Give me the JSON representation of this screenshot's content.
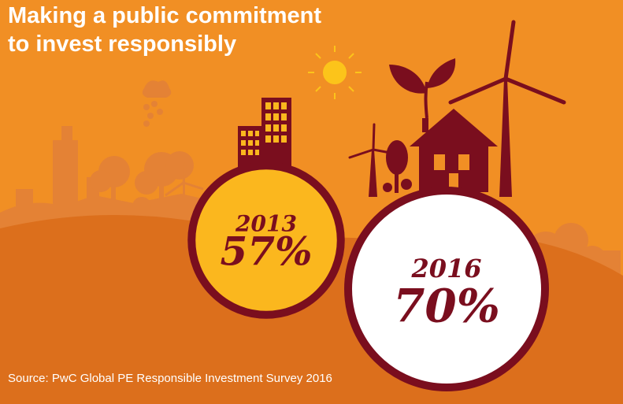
{
  "title_lines": [
    "Making a public commitment",
    "to invest responsibly"
  ],
  "source": "Source: PwC Global PE Responsible Investment Survey 2016",
  "colors": {
    "background": "#f18f24",
    "hills": "#dc6f1c",
    "silhouette": "#e48235",
    "maroon": "#7a0e1e",
    "circle_2013": "#fbb71e",
    "circle_2016": "#ffffff",
    "sun": "#fcc41a"
  },
  "chart_data": {
    "type": "bubble",
    "series": [
      {
        "year": "2013",
        "label": "57%",
        "value": 57
      },
      {
        "year": "2016",
        "label": "70%",
        "value": 70
      }
    ]
  }
}
